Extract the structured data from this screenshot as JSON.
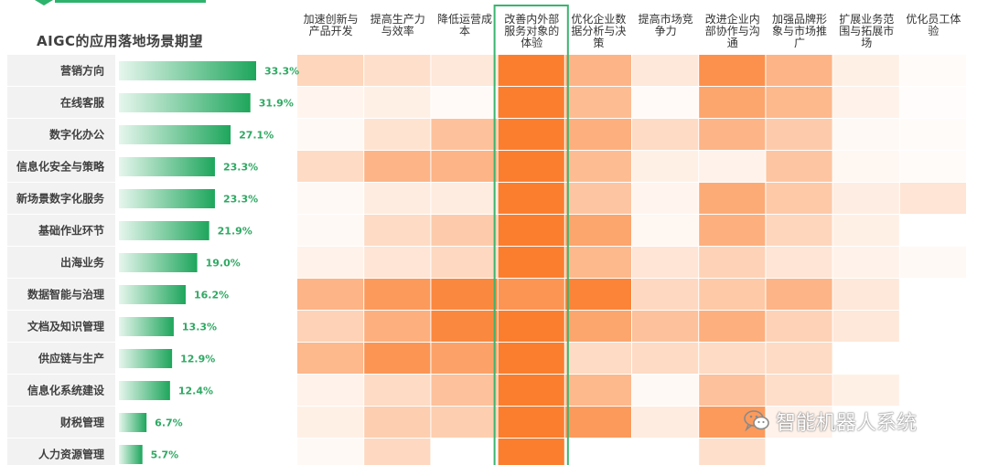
{
  "chart_data": {
    "type": "heatmap",
    "title": "AIGC的应用落地场景期望",
    "bar_series": {
      "categories": [
        "营销方向",
        "在线客服",
        "数字化办公",
        "信息化安全与策略",
        "新场景数字化服务",
        "基础作业环节",
        "出海业务",
        "数据智能与治理",
        "文档及知识管理",
        "供应链与生产",
        "信息化系统建设",
        "财税管理",
        "人力资源管理"
      ],
      "values": [
        33.3,
        31.9,
        27.1,
        23.3,
        23.3,
        21.9,
        19.0,
        16.2,
        13.3,
        12.9,
        12.4,
        6.7,
        5.7
      ],
      "labels": [
        "33.3%",
        "31.9%",
        "27.1%",
        "23.3%",
        "23.3%",
        "21.9%",
        "19.0%",
        "16.2%",
        "13.3%",
        "12.9%",
        "12.4%",
        "6.7%",
        "5.7%"
      ],
      "xlim": [
        0,
        33.3
      ]
    },
    "columns": [
      "加速创新与产品开发",
      "提高生产力与效率",
      "降低运营成本",
      "改善内外部服务对象的体验",
      "优化企业数据分析与决策",
      "提高市场竞争力",
      "改进企业内部协作与沟通",
      "加强品牌形象与市场推广",
      "扩展业务范围与拓展市场",
      "优化员工体验"
    ],
    "highlighted_column": "改善内外部服务对象的体验",
    "intensity_scale": [
      0,
      1
    ],
    "intensity": [
      [
        0.32,
        0.25,
        0.18,
        1.0,
        0.58,
        0.18,
        0.85,
        0.58,
        0.12,
        0.03
      ],
      [
        0.08,
        0.12,
        0.04,
        1.0,
        0.52,
        0.04,
        0.7,
        0.55,
        0.1,
        0.02
      ],
      [
        0.05,
        0.22,
        0.48,
        1.0,
        0.62,
        0.28,
        0.58,
        0.4,
        0.05,
        0.03
      ],
      [
        0.28,
        0.58,
        0.58,
        1.0,
        0.52,
        0.12,
        0.1,
        0.45,
        0.06,
        0.03
      ],
      [
        0.05,
        0.15,
        0.15,
        1.0,
        0.45,
        0.08,
        0.65,
        0.42,
        0.14,
        0.2
      ],
      [
        0.05,
        0.28,
        0.4,
        1.0,
        0.7,
        0.06,
        0.62,
        0.32,
        0.12,
        0.0
      ],
      [
        0.1,
        0.2,
        0.3,
        1.0,
        0.55,
        0.2,
        0.35,
        0.2,
        0.1,
        0.05
      ],
      [
        0.58,
        0.78,
        0.92,
        0.82,
        0.95,
        0.3,
        0.42,
        0.58,
        0.18,
        0.0
      ],
      [
        0.35,
        0.62,
        0.92,
        1.0,
        0.7,
        0.48,
        0.62,
        0.35,
        0.18,
        0.0
      ],
      [
        0.55,
        0.82,
        0.72,
        1.0,
        0.28,
        0.28,
        0.28,
        0.28,
        0.0,
        0.0
      ],
      [
        0.1,
        0.28,
        0.48,
        1.0,
        0.55,
        0.05,
        0.48,
        0.26,
        0.12,
        0.0
      ],
      [
        0.12,
        0.38,
        0.38,
        1.0,
        0.78,
        0.15,
        0.78,
        0.1,
        0.0,
        0.0
      ],
      [
        0.05,
        0.3,
        0.0,
        1.0,
        0.0,
        0.0,
        0.25,
        0.0,
        0.0,
        0.0
      ]
    ]
  },
  "colors": {
    "heat_max": "#fb7e2e",
    "heat_min": "#ffffff",
    "bar_start": "#e6f6ed",
    "bar_end": "#1ea65c",
    "value_label": "#2fa963",
    "highlight_border": "#3ab46f",
    "row_label": "#404040",
    "row_band": "#f2f2f2"
  },
  "watermark": {
    "text": "智能机器人系统",
    "icon": "wechat-icon"
  }
}
